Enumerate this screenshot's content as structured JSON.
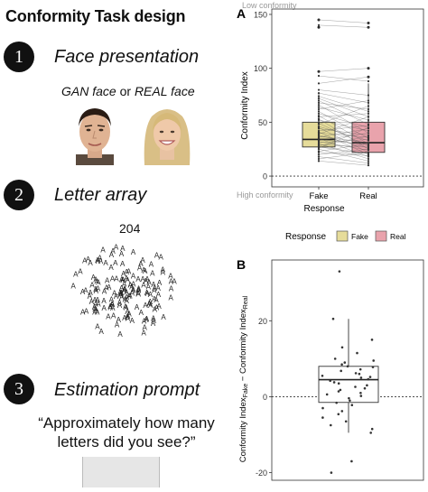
{
  "design": {
    "title": "Conformity Task design",
    "steps": [
      {
        "num": "1",
        "title": "Face presentation"
      },
      {
        "num": "2",
        "title": "Letter array"
      },
      {
        "num": "3",
        "title": "Estimation prompt"
      }
    ],
    "face_caption": {
      "gan": "GAN face",
      "or": "or",
      "real": "REAL face"
    },
    "letter_count": "204",
    "letter_glyph": "A",
    "prompt_line1": "“Approximately how many",
    "prompt_line2": "letters did you see?”"
  },
  "chart_data": [
    {
      "panel": "A",
      "type": "box",
      "xlabel": "Response",
      "ylabel": "Conformity Index",
      "categories": [
        "Fake",
        "Real"
      ],
      "ylim": [
        -10,
        155
      ],
      "yticks": [
        0,
        50,
        100,
        150
      ],
      "annotations": {
        "top": "Low conformity",
        "bottom": "High conformity"
      },
      "boxes": [
        {
          "category": "Fake",
          "min": 14,
          "q1": 27,
          "median": 34,
          "q3": 50,
          "max": 76,
          "outliers": [
            97,
            138,
            145
          ],
          "color": "#e6dc9a"
        },
        {
          "category": "Real",
          "min": 10,
          "q1": 22,
          "median": 31,
          "q3": 50,
          "max": 86,
          "outliers": [
            92,
            100,
            138,
            142
          ],
          "color": "#e9a3ac"
        }
      ],
      "paired_lines": [
        [
          145,
          142
        ],
        [
          140,
          138
        ],
        [
          97,
          100
        ],
        [
          93,
          88
        ],
        [
          86,
          92
        ],
        [
          80,
          75
        ],
        [
          77,
          68
        ],
        [
          74,
          60
        ],
        [
          72,
          55
        ],
        [
          70,
          48
        ],
        [
          68,
          62
        ],
        [
          66,
          40
        ],
        [
          64,
          52
        ],
        [
          62,
          70
        ],
        [
          60,
          35
        ],
        [
          58,
          45
        ],
        [
          56,
          30
        ],
        [
          55,
          58
        ],
        [
          53,
          25
        ],
        [
          52,
          42
        ],
        [
          50,
          50
        ],
        [
          49,
          28
        ],
        [
          48,
          65
        ],
        [
          46,
          33
        ],
        [
          45,
          22
        ],
        [
          44,
          38
        ],
        [
          42,
          47
        ],
        [
          41,
          20
        ],
        [
          40,
          36
        ],
        [
          39,
          55
        ],
        [
          38,
          26
        ],
        [
          37,
          31
        ],
        [
          36,
          44
        ],
        [
          35,
          18
        ],
        [
          34,
          29
        ],
        [
          33,
          40
        ],
        [
          32,
          24
        ],
        [
          31,
          34
        ],
        [
          30,
          16
        ],
        [
          29,
          27
        ],
        [
          28,
          37
        ],
        [
          27,
          21
        ],
        [
          26,
          45
        ],
        [
          25,
          14
        ],
        [
          23,
          30
        ],
        [
          22,
          19
        ],
        [
          20,
          25
        ],
        [
          18,
          12
        ],
        [
          16,
          22
        ],
        [
          14,
          10
        ]
      ],
      "hline": 0,
      "legend": {
        "title": "Response",
        "items": [
          {
            "label": "Fake",
            "color": "#e6dc9a"
          },
          {
            "label": "Real",
            "color": "#e9a3ac"
          }
        ]
      }
    },
    {
      "panel": "B",
      "type": "box",
      "ylabel": "Conformity Index_Fake − Conformity Index_Real",
      "ylabel_main": "Conformity Index",
      "ylabel_sub1": "Fake",
      "ylabel_mid": " − Conformity Index",
      "ylabel_sub2": "Real",
      "ylim": [
        -22,
        36
      ],
      "yticks": [
        -20,
        0,
        20
      ],
      "box": {
        "min": -9.5,
        "q1": -1.5,
        "median": 4.5,
        "q3": 8,
        "max": 20.5,
        "color": "#ffffff"
      },
      "hline": 0,
      "points": [
        33,
        20.5,
        15,
        13,
        11.5,
        10,
        9.5,
        9,
        8.5,
        8,
        7.8,
        7.2,
        6.8,
        6.2,
        6,
        5.5,
        5.2,
        5,
        4.6,
        4.2,
        3.8,
        3.5,
        3,
        2.6,
        2.2,
        1.8,
        1.4,
        1,
        0.6,
        0.2,
        -0.4,
        -1,
        -1.6,
        -2.2,
        -3,
        -3.8,
        -4.6,
        -5.5,
        -6.5,
        -7.5,
        -8.5,
        -9.5,
        -17,
        -20
      ]
    }
  ]
}
